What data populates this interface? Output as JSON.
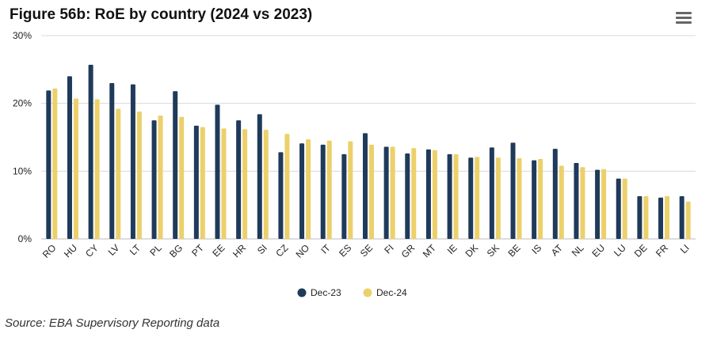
{
  "title": "Figure 56b: RoE by country (2024 vs 2023)",
  "menu_icon": "hamburger-menu-icon",
  "source": "Source: EBA Supervisory Reporting data",
  "chart_data": {
    "type": "bar",
    "title": "Figure 56b: RoE by country (2024 vs 2023)",
    "xlabel": "",
    "ylabel": "",
    "ylim": [
      0,
      30
    ],
    "yticks": [
      {
        "value": 0,
        "label": "0%"
      },
      {
        "value": 10,
        "label": "10%"
      },
      {
        "value": 20,
        "label": "20%"
      },
      {
        "value": 30,
        "label": "30%"
      }
    ],
    "categories": [
      "RO",
      "HU",
      "CY",
      "LV",
      "LT",
      "PL",
      "BG",
      "PT",
      "EE",
      "HR",
      "SI",
      "CZ",
      "NO",
      "IT",
      "ES",
      "SE",
      "FI",
      "GR",
      "MT",
      "IE",
      "DK",
      "SK",
      "BE",
      "IS",
      "AT",
      "NL",
      "EU",
      "LU",
      "DE",
      "FR",
      "LI"
    ],
    "series": [
      {
        "name": "Dec-23",
        "color": "#1f3a5a",
        "values": [
          21.9,
          24.0,
          25.7,
          23.0,
          22.8,
          17.5,
          21.8,
          16.7,
          19.8,
          17.5,
          18.4,
          12.8,
          14.1,
          13.9,
          12.5,
          15.6,
          13.6,
          12.6,
          13.2,
          12.5,
          12.0,
          13.5,
          14.2,
          11.6,
          13.3,
          11.2,
          10.2,
          8.9,
          6.3,
          6.1,
          6.3
        ]
      },
      {
        "name": "Dec-24",
        "color": "#ecd06a",
        "values": [
          22.2,
          20.7,
          20.6,
          19.2,
          18.8,
          18.2,
          18.0,
          16.5,
          16.3,
          16.2,
          16.1,
          15.5,
          14.7,
          14.5,
          14.4,
          13.9,
          13.6,
          13.4,
          13.1,
          12.5,
          12.1,
          12.0,
          11.9,
          11.8,
          10.8,
          10.6,
          10.3,
          8.9,
          6.3,
          6.3,
          5.5
        ]
      }
    ],
    "legend": {
      "position": "bottom-center",
      "entries": [
        "Dec-23",
        "Dec-24"
      ]
    },
    "grid": true
  }
}
